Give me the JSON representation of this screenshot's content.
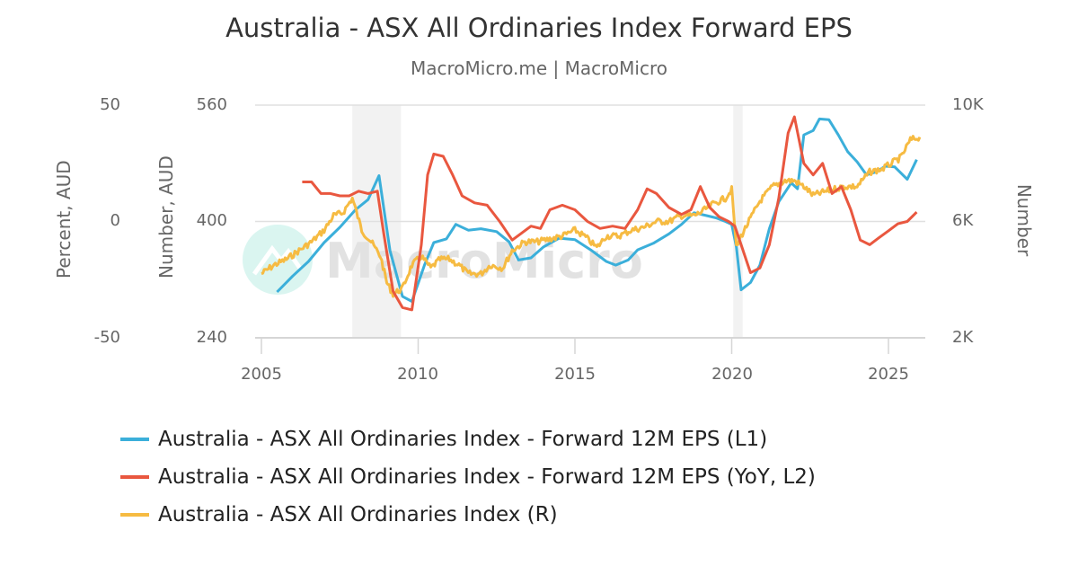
{
  "header": {
    "title": "Australia - ASX All Ordinaries Index Forward EPS",
    "subtitle": "MacroMicro.me | MacroMicro"
  },
  "watermark": {
    "text": "MacroMicro"
  },
  "axes": {
    "left2": {
      "title": "Percent, AUD",
      "ticks": [
        "50",
        "0",
        "-50"
      ]
    },
    "left1": {
      "title": "Number, AUD",
      "ticks": [
        "560",
        "400",
        "240"
      ]
    },
    "right": {
      "title": "Number",
      "ticks": [
        "10K",
        "6K",
        "2K"
      ]
    },
    "x": {
      "ticks": [
        "2005",
        "2010",
        "2015",
        "2020",
        "2025"
      ]
    }
  },
  "legend": {
    "items": [
      {
        "label": "Australia - ASX All Ordinaries Index - Forward 12M EPS (L1)",
        "color": "#3BAFDA"
      },
      {
        "label": "Australia - ASX All Ordinaries Index - Forward 12M EPS (YoY, L2)",
        "color": "#E9573F"
      },
      {
        "label": "Australia - ASX All Ordinaries Index (R)",
        "color": "#F6BB42"
      }
    ]
  },
  "chart_data": {
    "type": "line",
    "title": "Australia - ASX All Ordinaries Index Forward EPS",
    "subtitle": "MacroMicro.me | MacroMicro",
    "xlabel": "",
    "xlim": [
      2004.8,
      2026.2
    ],
    "x_ticks": [
      2005,
      2010,
      2015,
      2020,
      2025
    ],
    "y_axes": {
      "L1": {
        "label": "Number, AUD",
        "ylim": [
          240,
          560
        ],
        "ticks": [
          240,
          400,
          560
        ]
      },
      "L2": {
        "label": "Percent, AUD",
        "ylim": [
          -50,
          50
        ],
        "ticks": [
          -50,
          0,
          50
        ]
      },
      "R": {
        "label": "Number",
        "ylim": [
          2000,
          10000
        ],
        "ticks": [
          2000,
          6000,
          10000
        ],
        "tick_labels": [
          "2K",
          "6K",
          "10K"
        ]
      }
    },
    "shaded_periods": [
      [
        2007.9,
        2009.45
      ],
      [
        2020.05,
        2020.35
      ]
    ],
    "grid": true,
    "legend_position": "bottom",
    "series": [
      {
        "name": "Australia - ASX All Ordinaries Index - Forward 12M EPS (L1)",
        "axis": "L1",
        "color": "#3BAFDA",
        "x": [
          2005.5,
          2006.0,
          2006.5,
          2007.0,
          2007.5,
          2008.0,
          2008.4,
          2008.75,
          2009.1,
          2009.5,
          2009.8,
          2010.2,
          2010.5,
          2010.9,
          2011.2,
          2011.6,
          2012.0,
          2012.5,
          2012.9,
          2013.2,
          2013.6,
          2014.0,
          2014.5,
          2015.0,
          2015.5,
          2016.0,
          2016.3,
          2016.7,
          2017.0,
          2017.5,
          2018.0,
          2018.4,
          2018.8,
          2019.2,
          2019.5,
          2019.8,
          2020.0,
          2020.15,
          2020.3,
          2020.6,
          2020.9,
          2021.2,
          2021.5,
          2021.9,
          2022.1,
          2022.3,
          2022.6,
          2022.8,
          2023.1,
          2023.4,
          2023.7,
          2024.0,
          2024.3,
          2024.6,
          2024.9,
          2025.2,
          2025.6,
          2025.9
        ],
        "values": [
          303,
          325,
          345,
          371,
          392,
          416,
          430,
          463,
          360,
          297,
          290,
          340,
          371,
          376,
          396,
          388,
          390,
          386,
          372,
          347,
          350,
          365,
          377,
          375,
          361,
          345,
          340,
          347,
          361,
          370,
          383,
          396,
          412,
          408,
          405,
          400,
          396,
          365,
          306,
          316,
          340,
          390,
          427,
          453,
          445,
          519,
          525,
          541,
          540,
          519,
          496,
          482,
          464,
          468,
          476,
          475,
          458,
          485
        ]
      },
      {
        "name": "Australia - ASX All Ordinaries Index - Forward 12M EPS (YoY, L2)",
        "axis": "L2",
        "color": "#E9573F",
        "x": [
          2006.3,
          2006.6,
          2006.9,
          2007.2,
          2007.5,
          2007.8,
          2008.1,
          2008.4,
          2008.7,
          2008.9,
          2009.2,
          2009.5,
          2009.8,
          2010.1,
          2010.3,
          2010.5,
          2010.8,
          2011.1,
          2011.4,
          2011.8,
          2012.2,
          2012.6,
          2013.0,
          2013.3,
          2013.6,
          2013.9,
          2014.2,
          2014.6,
          2015.0,
          2015.4,
          2015.8,
          2016.2,
          2016.6,
          2017.0,
          2017.3,
          2017.6,
          2018.0,
          2018.4,
          2018.7,
          2019.0,
          2019.3,
          2019.6,
          2019.9,
          2020.1,
          2020.3,
          2020.6,
          2020.9,
          2021.2,
          2021.5,
          2021.8,
          2022.0,
          2022.3,
          2022.6,
          2022.9,
          2023.2,
          2023.5,
          2023.8,
          2024.1,
          2024.4,
          2024.7,
          2025.0,
          2025.3,
          2025.6,
          2025.9
        ],
        "values": [
          17,
          17,
          12,
          12,
          11,
          11,
          13,
          12,
          13,
          -5,
          -30,
          -37,
          -38,
          -10,
          20,
          29,
          28,
          20,
          11,
          8,
          7,
          0,
          -8,
          -5,
          -2,
          -3,
          5,
          7,
          5,
          0,
          -3,
          -2,
          -3,
          5,
          14,
          12,
          6,
          3,
          5,
          15,
          6,
          2,
          0,
          -2,
          -10,
          -22,
          -20,
          -10,
          10,
          38,
          45,
          25,
          20,
          25,
          12,
          15,
          5,
          -8,
          -10,
          -7,
          -4,
          -1,
          0,
          4
        ]
      },
      {
        "name": "Australia - ASX All Ordinaries Index (R)",
        "axis": "R",
        "color": "#F6BB42",
        "x": [
          2005.0,
          2005.4,
          2005.8,
          2006.2,
          2006.6,
          2007.0,
          2007.3,
          2007.6,
          2007.9,
          2008.2,
          2008.5,
          2008.8,
          2009.0,
          2009.2,
          2009.5,
          2009.8,
          2010.1,
          2010.4,
          2010.7,
          2011.0,
          2011.3,
          2011.6,
          2012.0,
          2012.3,
          2012.7,
          2013.0,
          2013.4,
          2013.8,
          2014.2,
          2014.6,
          2015.0,
          2015.3,
          2015.7,
          2016.0,
          2016.4,
          2016.8,
          2017.2,
          2017.6,
          2018.0,
          2018.4,
          2018.8,
          2019.0,
          2019.4,
          2019.8,
          2020.0,
          2020.15,
          2020.3,
          2020.6,
          2020.9,
          2021.3,
          2021.7,
          2022.0,
          2022.3,
          2022.6,
          2022.9,
          2023.2,
          2023.6,
          2024.0,
          2024.4,
          2024.8,
          2025.1,
          2025.4,
          2025.7,
          2026.0
        ],
        "values": [
          4200,
          4500,
          4700,
          5000,
          5300,
          5700,
          6200,
          6300,
          6800,
          5700,
          5300,
          4800,
          3900,
          3500,
          3700,
          4500,
          4800,
          4400,
          4700,
          4700,
          4500,
          4200,
          4200,
          4500,
          4400,
          5000,
          5300,
          5300,
          5400,
          5500,
          5700,
          5500,
          5100,
          5500,
          5500,
          5700,
          5800,
          6000,
          6000,
          6200,
          6200,
          6300,
          6600,
          6800,
          7100,
          5100,
          5500,
          6100,
          6700,
          7200,
          7400,
          7400,
          7200,
          6900,
          7000,
          7100,
          7200,
          7200,
          7700,
          7800,
          8000,
          8200,
          8800,
          8900
        ]
      }
    ]
  }
}
